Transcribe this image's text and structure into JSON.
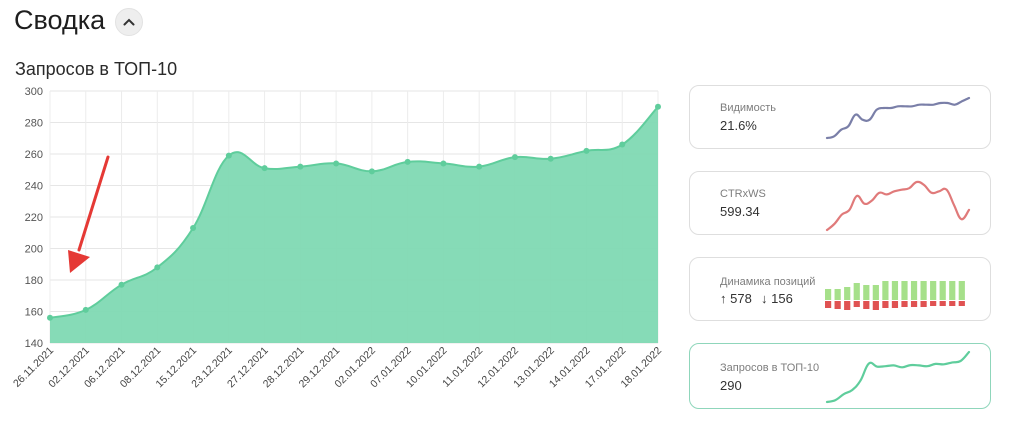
{
  "header": {
    "title": "Сводка"
  },
  "chart_title": "Запросов в ТОП-10",
  "chart_data": {
    "type": "area",
    "title": "Запросов в ТОП-10",
    "x": [
      "26.11.2021",
      "02.12.2021",
      "06.12.2021",
      "08.12.2021",
      "15.12.2021",
      "23.12.2021",
      "27.12.2021",
      "28.12.2021",
      "29.12.2021",
      "02.01.2022",
      "07.01.2022",
      "10.01.2022",
      "11.01.2022",
      "12.01.2022",
      "13.01.2022",
      "14.01.2022",
      "17.01.2022",
      "18.01.2022"
    ],
    "values": [
      156,
      161,
      177,
      188,
      213,
      259,
      251,
      252,
      254,
      249,
      255,
      254,
      252,
      258,
      257,
      262,
      266,
      290
    ],
    "ylim": [
      140,
      300
    ],
    "yticks": [
      140,
      160,
      180,
      200,
      220,
      240,
      260,
      280,
      300
    ],
    "grid": true,
    "color": "#7fd9b3",
    "line_color": "#5fcd9c",
    "annotation": "red-arrow"
  },
  "cards": [
    {
      "label": "Видимость",
      "value": "21.6%",
      "color": "#7a7fa8",
      "spark": [
        270,
        271,
        275,
        277,
        284,
        281,
        281,
        287,
        288,
        288,
        289,
        289,
        289,
        290,
        290,
        290,
        291,
        291,
        290,
        292,
        294
      ]
    },
    {
      "label": "CTRxWS",
      "value": "599.34",
      "color": "#e07a7a",
      "spark": [
        212,
        216,
        222,
        225,
        234,
        229,
        231,
        236,
        235,
        237,
        238,
        239,
        243,
        241,
        236,
        237,
        238,
        228,
        219,
        225
      ]
    },
    {
      "label": "Динамика позиций",
      "up_value": "↑ 578",
      "down_value": "↓ 156",
      "up_color": "#a6e08a",
      "down_color": "#e05252",
      "bars_up": [
        11,
        11,
        13,
        17,
        15,
        15,
        19,
        19,
        19,
        19,
        19,
        19,
        19,
        19,
        19
      ],
      "bars_down": [
        7,
        8,
        9,
        6,
        8,
        9,
        7,
        7,
        6,
        6,
        6,
        5,
        5,
        5,
        5
      ]
    },
    {
      "label": "Запросов в ТОП-10",
      "value": "290",
      "color": "#5fcd9c",
      "active": true,
      "spark": [
        156,
        161,
        177,
        188,
        213,
        259,
        251,
        252,
        254,
        249,
        255,
        254,
        252,
        258,
        257,
        262,
        266,
        290
      ]
    }
  ]
}
